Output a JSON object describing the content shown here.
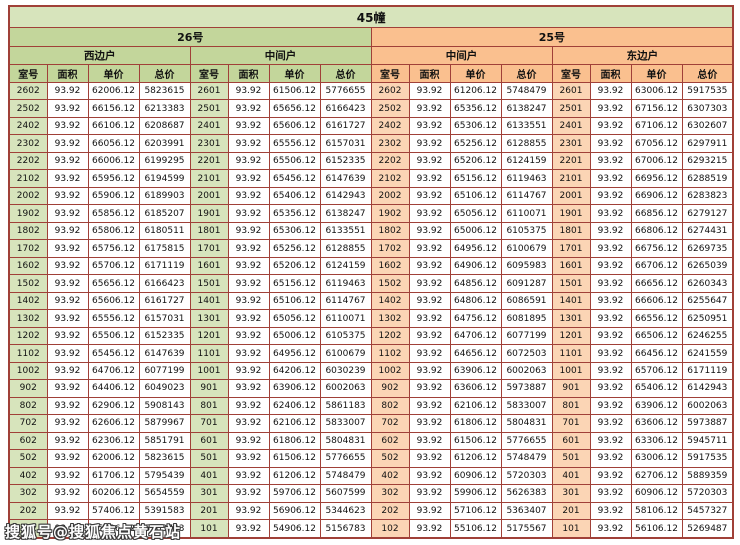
{
  "title": "45幢",
  "watermark": "搜狐号@搜狐焦点黄石站",
  "colors": {
    "title-bg": "#d7e4bc",
    "green-header": "#c3d69b",
    "peach-header": "#fac08f",
    "green-light": "#d7e4bc",
    "peach-light": "#fbd5b5",
    "border": "#a04038"
  },
  "chart_data": {
    "type": "table",
    "title": "45幢",
    "blocks": [
      {
        "label": "26号"
      },
      {
        "label": "25号"
      }
    ],
    "unit_types": [
      "西边户",
      "中间户",
      "中间户",
      "东边户"
    ],
    "column_headers": [
      "室号",
      "面积",
      "单价",
      "总价"
    ],
    "rows": [
      [
        [
          "2602",
          "93.92",
          "62006.12",
          "5823615"
        ],
        [
          "2601",
          "93.92",
          "61506.12",
          "5776655"
        ],
        [
          "2602",
          "93.92",
          "61206.12",
          "5748479"
        ],
        [
          "2601",
          "93.92",
          "63006.12",
          "5917535"
        ]
      ],
      [
        [
          "2502",
          "93.92",
          "66156.12",
          "6213383"
        ],
        [
          "2501",
          "93.92",
          "65656.12",
          "6166423"
        ],
        [
          "2502",
          "93.92",
          "65356.12",
          "6138247"
        ],
        [
          "2501",
          "93.92",
          "67156.12",
          "6307303"
        ]
      ],
      [
        [
          "2402",
          "93.92",
          "66106.12",
          "6208687"
        ],
        [
          "2401",
          "93.92",
          "65606.12",
          "6161727"
        ],
        [
          "2402",
          "93.92",
          "65306.12",
          "6133551"
        ],
        [
          "2401",
          "93.92",
          "67106.12",
          "6302607"
        ]
      ],
      [
        [
          "2302",
          "93.92",
          "66056.12",
          "6203991"
        ],
        [
          "2301",
          "93.92",
          "65556.12",
          "6157031"
        ],
        [
          "2302",
          "93.92",
          "65256.12",
          "6128855"
        ],
        [
          "2301",
          "93.92",
          "67056.12",
          "6297911"
        ]
      ],
      [
        [
          "2202",
          "93.92",
          "66006.12",
          "6199295"
        ],
        [
          "2201",
          "93.92",
          "65506.12",
          "6152335"
        ],
        [
          "2202",
          "93.92",
          "65206.12",
          "6124159"
        ],
        [
          "2201",
          "93.92",
          "67006.12",
          "6293215"
        ]
      ],
      [
        [
          "2102",
          "93.92",
          "65956.12",
          "6194599"
        ],
        [
          "2101",
          "93.92",
          "65456.12",
          "6147639"
        ],
        [
          "2102",
          "93.92",
          "65156.12",
          "6119463"
        ],
        [
          "2101",
          "93.92",
          "66956.12",
          "6288519"
        ]
      ],
      [
        [
          "2002",
          "93.92",
          "65906.12",
          "6189903"
        ],
        [
          "2001",
          "93.92",
          "65406.12",
          "6142943"
        ],
        [
          "2002",
          "93.92",
          "65106.12",
          "6114767"
        ],
        [
          "2001",
          "93.92",
          "66906.12",
          "6283823"
        ]
      ],
      [
        [
          "1902",
          "93.92",
          "65856.12",
          "6185207"
        ],
        [
          "1901",
          "93.92",
          "65356.12",
          "6138247"
        ],
        [
          "1902",
          "93.92",
          "65056.12",
          "6110071"
        ],
        [
          "1901",
          "93.92",
          "66856.12",
          "6279127"
        ]
      ],
      [
        [
          "1802",
          "93.92",
          "65806.12",
          "6180511"
        ],
        [
          "1801",
          "93.92",
          "65306.12",
          "6133551"
        ],
        [
          "1802",
          "93.92",
          "65006.12",
          "6105375"
        ],
        [
          "1801",
          "93.92",
          "66806.12",
          "6274431"
        ]
      ],
      [
        [
          "1702",
          "93.92",
          "65756.12",
          "6175815"
        ],
        [
          "1701",
          "93.92",
          "65256.12",
          "6128855"
        ],
        [
          "1702",
          "93.92",
          "64956.12",
          "6100679"
        ],
        [
          "1701",
          "93.92",
          "66756.12",
          "6269735"
        ]
      ],
      [
        [
          "1602",
          "93.92",
          "65706.12",
          "6171119"
        ],
        [
          "1601",
          "93.92",
          "65206.12",
          "6124159"
        ],
        [
          "1602",
          "93.92",
          "64906.12",
          "6095983"
        ],
        [
          "1601",
          "93.92",
          "66706.12",
          "6265039"
        ]
      ],
      [
        [
          "1502",
          "93.92",
          "65656.12",
          "6166423"
        ],
        [
          "1501",
          "93.92",
          "65156.12",
          "6119463"
        ],
        [
          "1502",
          "93.92",
          "64856.12",
          "6091287"
        ],
        [
          "1501",
          "93.92",
          "66656.12",
          "6260343"
        ]
      ],
      [
        [
          "1402",
          "93.92",
          "65606.12",
          "6161727"
        ],
        [
          "1401",
          "93.92",
          "65106.12",
          "6114767"
        ],
        [
          "1402",
          "93.92",
          "64806.12",
          "6086591"
        ],
        [
          "1401",
          "93.92",
          "66606.12",
          "6255647"
        ]
      ],
      [
        [
          "1302",
          "93.92",
          "65556.12",
          "6157031"
        ],
        [
          "1301",
          "93.92",
          "65056.12",
          "6110071"
        ],
        [
          "1302",
          "93.92",
          "64756.12",
          "6081895"
        ],
        [
          "1301",
          "93.92",
          "66556.12",
          "6250951"
        ]
      ],
      [
        [
          "1202",
          "93.92",
          "65506.12",
          "6152335"
        ],
        [
          "1201",
          "93.92",
          "65006.12",
          "6105375"
        ],
        [
          "1202",
          "93.92",
          "64706.12",
          "6077199"
        ],
        [
          "1201",
          "93.92",
          "66506.12",
          "6246255"
        ]
      ],
      [
        [
          "1102",
          "93.92",
          "65456.12",
          "6147639"
        ],
        [
          "1101",
          "93.92",
          "64956.12",
          "6100679"
        ],
        [
          "1102",
          "93.92",
          "64656.12",
          "6072503"
        ],
        [
          "1101",
          "93.92",
          "66456.12",
          "6241559"
        ]
      ],
      [
        [
          "1002",
          "93.92",
          "64706.12",
          "6077199"
        ],
        [
          "1001",
          "93.92",
          "64206.12",
          "6030239"
        ],
        [
          "1002",
          "93.92",
          "63906.12",
          "6002063"
        ],
        [
          "1001",
          "93.92",
          "65706.12",
          "6171119"
        ]
      ],
      [
        [
          "902",
          "93.92",
          "64406.12",
          "6049023"
        ],
        [
          "901",
          "93.92",
          "63906.12",
          "6002063"
        ],
        [
          "902",
          "93.92",
          "63606.12",
          "5973887"
        ],
        [
          "901",
          "93.92",
          "65406.12",
          "6142943"
        ]
      ],
      [
        [
          "802",
          "93.92",
          "62906.12",
          "5908143"
        ],
        [
          "801",
          "93.92",
          "62406.12",
          "5861183"
        ],
        [
          "802",
          "93.92",
          "62106.12",
          "5833007"
        ],
        [
          "801",
          "93.92",
          "63906.12",
          "6002063"
        ]
      ],
      [
        [
          "702",
          "93.92",
          "62606.12",
          "5879967"
        ],
        [
          "701",
          "93.92",
          "62106.12",
          "5833007"
        ],
        [
          "702",
          "93.92",
          "61806.12",
          "5804831"
        ],
        [
          "701",
          "93.92",
          "63606.12",
          "5973887"
        ]
      ],
      [
        [
          "602",
          "93.92",
          "62306.12",
          "5851791"
        ],
        [
          "601",
          "93.92",
          "61806.12",
          "5804831"
        ],
        [
          "602",
          "93.92",
          "61506.12",
          "5776655"
        ],
        [
          "601",
          "93.92",
          "63306.12",
          "5945711"
        ]
      ],
      [
        [
          "502",
          "93.92",
          "62006.12",
          "5823615"
        ],
        [
          "501",
          "93.92",
          "61506.12",
          "5776655"
        ],
        [
          "502",
          "93.92",
          "61206.12",
          "5748479"
        ],
        [
          "501",
          "93.92",
          "63006.12",
          "5917535"
        ]
      ],
      [
        [
          "402",
          "93.92",
          "61706.12",
          "5795439"
        ],
        [
          "401",
          "93.92",
          "61206.12",
          "5748479"
        ],
        [
          "402",
          "93.92",
          "60906.12",
          "5720303"
        ],
        [
          "401",
          "93.92",
          "62706.12",
          "5889359"
        ]
      ],
      [
        [
          "302",
          "93.92",
          "60206.12",
          "5654559"
        ],
        [
          "301",
          "93.92",
          "59706.12",
          "5607599"
        ],
        [
          "302",
          "93.92",
          "59906.12",
          "5626383"
        ],
        [
          "301",
          "93.92",
          "60906.12",
          "5720303"
        ]
      ],
      [
        [
          "202",
          "93.92",
          "57406.12",
          "5391583"
        ],
        [
          "201",
          "93.92",
          "56906.12",
          "5344623"
        ],
        [
          "202",
          "93.92",
          "57106.12",
          "5363407"
        ],
        [
          "201",
          "93.92",
          "58106.12",
          "5457327"
        ]
      ],
      [
        [
          "102",
          "93.92",
          "55406.12",
          "5203743"
        ],
        [
          "101",
          "93.92",
          "54906.12",
          "5156783"
        ],
        [
          "102",
          "93.92",
          "55106.12",
          "5175567"
        ],
        [
          "101",
          "93.92",
          "56106.12",
          "5269487"
        ]
      ]
    ]
  }
}
